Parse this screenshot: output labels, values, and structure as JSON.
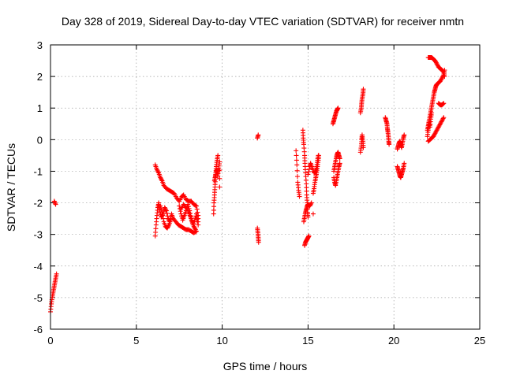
{
  "chart_data": {
    "type": "scatter",
    "title": "Day 328 of 2019, Sidereal Day-to-day VTEC variation (SDTVAR) for receiver nmtn",
    "xlabel": "GPS time / hours",
    "ylabel": "SDTVAR / TECUs",
    "xlim": [
      0,
      25
    ],
    "ylim": [
      -6,
      3
    ],
    "xticks": [
      0,
      5,
      10,
      15,
      20,
      25
    ],
    "yticks": [
      -6,
      -5,
      -4,
      -3,
      -2,
      -1,
      0,
      1,
      2,
      3
    ],
    "xtick_labels": [
      "0",
      "5",
      "10",
      "15",
      "20",
      "25"
    ],
    "ytick_labels": [
      "-6",
      "-5",
      "-4",
      "-3",
      "-2",
      "-1",
      "0",
      "1",
      "2",
      "3"
    ],
    "grid": true,
    "marker": "+",
    "color": "#ff0000",
    "segments": [
      [
        [
          0.0,
          -5.45
        ],
        [
          0.05,
          -5.2
        ],
        [
          0.1,
          -5.0
        ],
        [
          0.15,
          -4.85
        ],
        [
          0.2,
          -4.7
        ],
        [
          0.25,
          -4.55
        ],
        [
          0.3,
          -4.4
        ],
        [
          0.35,
          -4.25
        ]
      ],
      [
        [
          0.22,
          -1.95
        ],
        [
          0.3,
          -2.05
        ]
      ],
      [
        [
          6.1,
          -3.05
        ],
        [
          6.15,
          -2.7
        ],
        [
          6.2,
          -2.4
        ],
        [
          6.25,
          -2.15
        ],
        [
          6.3,
          -2.0
        ],
        [
          6.35,
          -2.2
        ],
        [
          6.45,
          -2.45
        ],
        [
          6.55,
          -2.35
        ],
        [
          6.65,
          -2.15
        ],
        [
          6.75,
          -2.25
        ],
        [
          6.85,
          -2.5
        ],
        [
          6.95,
          -2.6
        ],
        [
          7.05,
          -2.35
        ],
        [
          7.15,
          -2.5
        ],
        [
          7.3,
          -2.6
        ],
        [
          7.45,
          -2.7
        ],
        [
          7.6,
          -2.75
        ],
        [
          7.75,
          -2.8
        ],
        [
          7.9,
          -2.85
        ],
        [
          8.05,
          -2.85
        ],
        [
          8.2,
          -2.9
        ],
        [
          8.35,
          -2.95
        ],
        [
          8.5,
          -2.9
        ]
      ],
      [
        [
          6.1,
          -0.8
        ],
        [
          6.2,
          -0.95
        ],
        [
          6.3,
          -1.05
        ],
        [
          6.4,
          -1.2
        ],
        [
          6.5,
          -1.3
        ],
        [
          6.6,
          -1.45
        ],
        [
          6.75,
          -1.55
        ],
        [
          6.9,
          -1.6
        ],
        [
          7.05,
          -1.65
        ],
        [
          7.2,
          -1.7
        ],
        [
          7.35,
          -1.85
        ],
        [
          7.5,
          -1.95
        ],
        [
          7.65,
          -1.8
        ],
        [
          7.75,
          -1.75
        ],
        [
          7.9,
          -1.9
        ],
        [
          8.05,
          -1.95
        ],
        [
          8.2,
          -1.95
        ],
        [
          8.35,
          -2.05
        ],
        [
          8.5,
          -2.1
        ],
        [
          8.6,
          -2.4
        ],
        [
          8.6,
          -2.7
        ]
      ],
      [
        [
          7.5,
          -2.1
        ],
        [
          7.6,
          -2.35
        ],
        [
          7.7,
          -2.55
        ],
        [
          7.8,
          -2.4
        ],
        [
          7.9,
          -2.25
        ],
        [
          8.0,
          -2.05
        ],
        [
          8.1,
          -2.25
        ],
        [
          8.2,
          -2.5
        ],
        [
          8.3,
          -2.7
        ],
        [
          8.4,
          -2.55
        ],
        [
          8.5,
          -2.35
        ],
        [
          8.55,
          -2.6
        ]
      ],
      [
        [
          6.4,
          -2.1
        ],
        [
          6.5,
          -2.3
        ],
        [
          6.6,
          -2.6
        ],
        [
          6.7,
          -2.75
        ],
        [
          6.8,
          -2.8
        ],
        [
          6.9,
          -2.7
        ],
        [
          7.0,
          -2.55
        ]
      ],
      [
        [
          7.6,
          -2.2
        ],
        [
          7.75,
          -2.05
        ],
        [
          7.9,
          -2.15
        ],
        [
          8.05,
          -2.3
        ],
        [
          8.15,
          -2.45
        ],
        [
          8.25,
          -2.6
        ],
        [
          8.35,
          -2.75
        ],
        [
          8.45,
          -2.85
        ]
      ],
      [
        [
          9.5,
          -2.35
        ],
        [
          9.52,
          -2.0
        ],
        [
          9.55,
          -1.75
        ],
        [
          9.58,
          -1.5
        ],
        [
          9.6,
          -1.25
        ],
        [
          9.63,
          -1.05
        ],
        [
          9.65,
          -0.85
        ],
        [
          9.7,
          -0.65
        ],
        [
          9.75,
          -0.5
        ]
      ],
      [
        [
          9.55,
          -1.3
        ],
        [
          9.6,
          -1.15
        ],
        [
          9.65,
          -1.0
        ],
        [
          9.7,
          -0.95
        ],
        [
          9.75,
          -1.15
        ],
        [
          9.8,
          -0.9
        ],
        [
          9.85,
          -0.7
        ],
        [
          9.85,
          -1.5
        ]
      ],
      [
        [
          12.05,
          0.05
        ],
        [
          12.1,
          0.15
        ]
      ],
      [
        [
          12.05,
          -2.8
        ],
        [
          12.08,
          -2.95
        ],
        [
          12.1,
          -3.1
        ],
        [
          12.12,
          -3.25
        ]
      ],
      [
        [
          14.3,
          -0.35
        ],
        [
          14.35,
          -0.8
        ],
        [
          14.4,
          -1.35
        ],
        [
          14.45,
          -1.6
        ],
        [
          14.5,
          -1.8
        ]
      ],
      [
        [
          14.7,
          0.3
        ],
        [
          14.72,
          0.05
        ],
        [
          14.75,
          -0.15
        ],
        [
          14.8,
          -0.5
        ],
        [
          14.82,
          -0.75
        ],
        [
          14.85,
          -1.05
        ],
        [
          14.9,
          -1.4
        ],
        [
          14.92,
          -1.75
        ],
        [
          14.95,
          -2.0
        ],
        [
          14.97,
          -2.3
        ],
        [
          15.0,
          -2.45
        ]
      ],
      [
        [
          14.75,
          -2.6
        ],
        [
          14.8,
          -2.45
        ],
        [
          14.85,
          -2.3
        ],
        [
          14.9,
          -2.2
        ],
        [
          14.95,
          -2.1
        ],
        [
          15.0,
          -2.05
        ],
        [
          15.1,
          -2.1
        ],
        [
          15.2,
          -2.0
        ]
      ],
      [
        [
          14.8,
          -3.35
        ],
        [
          14.85,
          -3.25
        ],
        [
          14.9,
          -3.2
        ],
        [
          14.95,
          -3.15
        ],
        [
          15.0,
          -3.1
        ],
        [
          15.05,
          -3.05
        ]
      ],
      [
        [
          15.0,
          -1.1
        ],
        [
          15.1,
          -0.85
        ],
        [
          15.15,
          -0.75
        ],
        [
          15.25,
          -0.9
        ],
        [
          15.35,
          -1.05
        ],
        [
          15.45,
          -1.0
        ],
        [
          15.5,
          -0.85
        ],
        [
          15.55,
          -0.65
        ],
        [
          15.6,
          -0.5
        ]
      ],
      [
        [
          15.3,
          -1.7
        ],
        [
          15.35,
          -1.55
        ],
        [
          15.4,
          -1.35
        ],
        [
          15.45,
          -1.2
        ],
        [
          15.5,
          -1.05
        ],
        [
          15.55,
          -0.85
        ],
        [
          15.6,
          -0.65
        ],
        [
          15.62,
          -0.5
        ]
      ],
      [
        [
          15.3,
          -2.35
        ]
      ],
      [
        [
          16.45,
          0.5
        ],
        [
          16.5,
          0.6
        ],
        [
          16.55,
          0.7
        ],
        [
          16.6,
          0.8
        ],
        [
          16.65,
          0.9
        ],
        [
          16.7,
          0.95
        ],
        [
          16.75,
          1.0
        ]
      ],
      [
        [
          16.5,
          -1.0
        ],
        [
          16.55,
          -0.85
        ],
        [
          16.6,
          -0.7
        ],
        [
          16.65,
          -0.55
        ],
        [
          16.7,
          -0.45
        ],
        [
          16.75,
          -0.4
        ],
        [
          16.8,
          -0.5
        ],
        [
          16.85,
          -0.6
        ]
      ],
      [
        [
          16.5,
          -1.2
        ],
        [
          16.55,
          -1.35
        ],
        [
          16.6,
          -1.45
        ],
        [
          16.65,
          -1.3
        ],
        [
          16.7,
          -1.15
        ],
        [
          16.75,
          -1.0
        ],
        [
          16.8,
          -0.85
        ],
        [
          16.85,
          -0.75
        ]
      ],
      [
        [
          18.05,
          -0.4
        ],
        [
          18.1,
          -0.2
        ],
        [
          18.12,
          0.0
        ],
        [
          18.15,
          0.15
        ],
        [
          18.2,
          -0.05
        ],
        [
          18.22,
          -0.25
        ]
      ],
      [
        [
          18.05,
          0.85
        ],
        [
          18.1,
          1.0
        ],
        [
          18.12,
          1.15
        ],
        [
          18.15,
          1.3
        ],
        [
          18.2,
          1.45
        ],
        [
          18.22,
          1.6
        ]
      ],
      [
        [
          19.5,
          0.7
        ],
        [
          19.55,
          0.6
        ],
        [
          19.6,
          0.5
        ],
        [
          19.62,
          0.35
        ],
        [
          19.65,
          0.25
        ],
        [
          19.68,
          0.1
        ],
        [
          19.7,
          -0.05
        ],
        [
          19.72,
          -0.15
        ]
      ],
      [
        [
          20.2,
          -0.3
        ],
        [
          20.25,
          -0.2
        ],
        [
          20.3,
          -0.1
        ],
        [
          20.35,
          -0.05
        ],
        [
          20.4,
          -0.15
        ],
        [
          20.45,
          -0.25
        ],
        [
          20.5,
          -0.1
        ],
        [
          20.55,
          0.05
        ],
        [
          20.6,
          0.15
        ]
      ],
      [
        [
          20.2,
          -0.85
        ],
        [
          20.25,
          -0.95
        ],
        [
          20.3,
          -1.05
        ],
        [
          20.35,
          -1.15
        ],
        [
          20.4,
          -1.2
        ],
        [
          20.45,
          -1.1
        ],
        [
          20.5,
          -1.0
        ],
        [
          20.55,
          -0.9
        ],
        [
          20.6,
          -0.75
        ]
      ],
      [
        [
          21.95,
          0.3
        ],
        [
          22.0,
          0.45
        ],
        [
          22.05,
          0.6
        ],
        [
          22.1,
          0.75
        ],
        [
          22.15,
          0.9
        ],
        [
          22.2,
          1.05
        ],
        [
          22.25,
          1.2
        ],
        [
          22.3,
          1.35
        ],
        [
          22.35,
          1.5
        ],
        [
          22.4,
          1.6
        ],
        [
          22.45,
          1.7
        ],
        [
          22.5,
          1.75
        ],
        [
          22.6,
          1.8
        ],
        [
          22.7,
          1.85
        ],
        [
          22.8,
          1.95
        ],
        [
          22.9,
          2.05
        ],
        [
          22.95,
          2.2
        ]
      ],
      [
        [
          22.0,
          2.6
        ],
        [
          22.1,
          2.6
        ],
        [
          22.2,
          2.6
        ],
        [
          22.3,
          2.55
        ],
        [
          22.4,
          2.5
        ],
        [
          22.5,
          2.4
        ],
        [
          22.6,
          2.3
        ],
        [
          22.7,
          2.25
        ],
        [
          22.8,
          2.2
        ],
        [
          22.9,
          2.15
        ],
        [
          22.95,
          2.0
        ]
      ],
      [
        [
          22.0,
          -0.05
        ],
        [
          22.1,
          0.0
        ],
        [
          22.2,
          0.05
        ],
        [
          22.3,
          0.1
        ],
        [
          22.4,
          0.2
        ],
        [
          22.5,
          0.3
        ],
        [
          22.6,
          0.4
        ],
        [
          22.7,
          0.5
        ],
        [
          22.8,
          0.6
        ],
        [
          22.9,
          0.7
        ]
      ],
      [
        [
          22.6,
          1.15
        ],
        [
          22.7,
          1.1
        ],
        [
          22.8,
          1.1
        ],
        [
          22.9,
          1.15
        ]
      ],
      [
        [
          21.95,
          0.1
        ],
        [
          22.0,
          0.3
        ],
        [
          22.05,
          0.55
        ],
        [
          22.1,
          0.4
        ],
        [
          22.15,
          0.65
        ],
        [
          22.2,
          0.85
        ]
      ]
    ]
  }
}
